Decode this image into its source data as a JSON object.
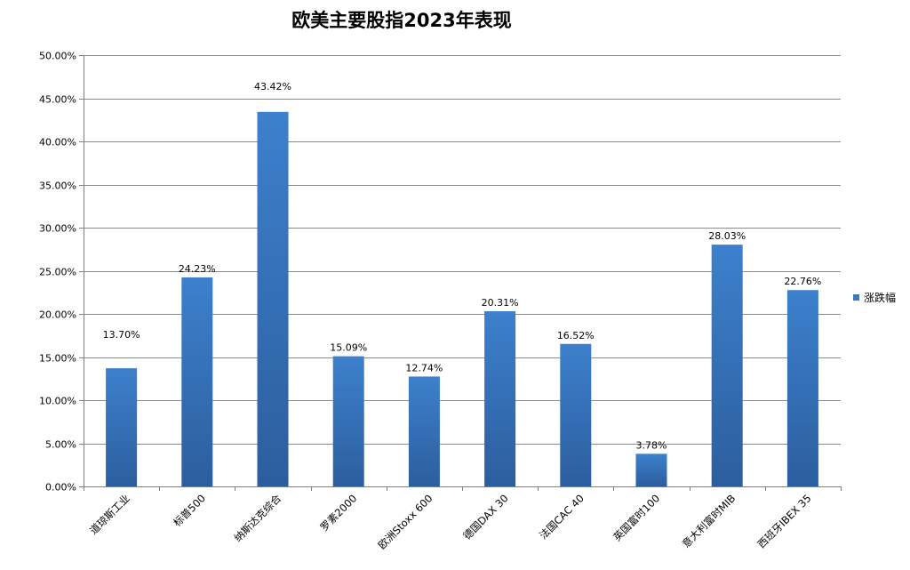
{
  "chart_data": {
    "type": "bar",
    "title": "欧美主要股指2023年表现",
    "categories": [
      "道琼斯工业",
      "标普500",
      "纳斯达克综合",
      "罗素2000",
      "欧洲Stoxx 600",
      "德国DAX 30",
      "法国CAC 40",
      "英国富时100",
      "意大利富时MIB",
      "西班牙IBEX 35"
    ],
    "series": [
      {
        "name": "涨跌幅",
        "values": [
          13.7,
          24.23,
          43.42,
          15.09,
          12.74,
          20.31,
          16.52,
          3.78,
          28.03,
          22.76
        ]
      }
    ],
    "data_labels": [
      "13.70%",
      "24.23%",
      "43.42%",
      "15.09%",
      "12.74%",
      "20.31%",
      "16.52%",
      "3.78%",
      "28.03%",
      "22.76%"
    ],
    "y_ticks": [
      "0.00%",
      "5.00%",
      "10.00%",
      "15.00%",
      "20.00%",
      "25.00%",
      "30.00%",
      "35.00%",
      "40.00%",
      "45.00%",
      "50.00%"
    ],
    "ylim": [
      0,
      50
    ],
    "grid": true,
    "legend_position": "right",
    "bar_color": "#3a78c0"
  }
}
